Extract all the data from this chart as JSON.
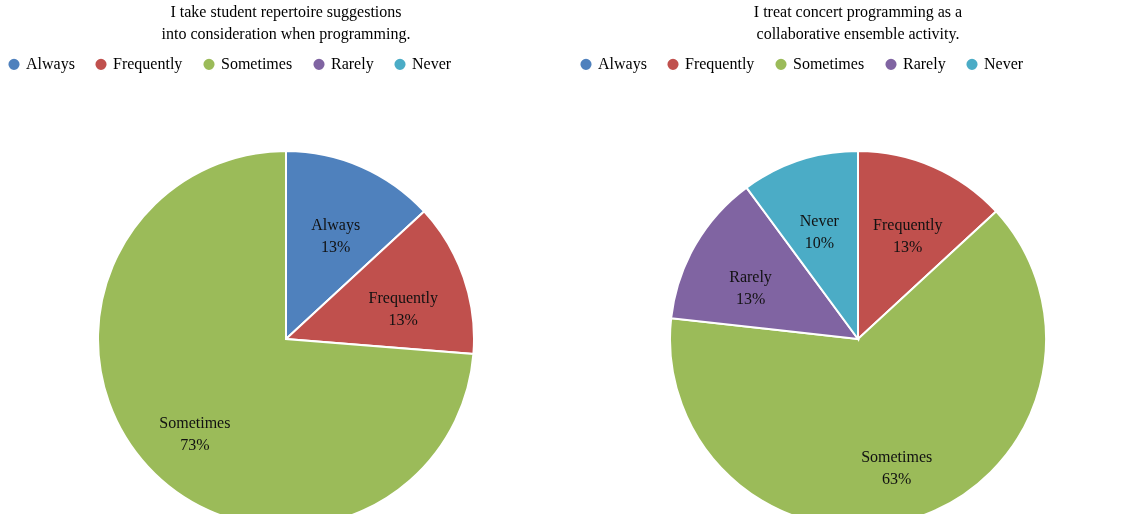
{
  "chart_data": [
    {
      "type": "pie",
      "title": "I take student repertoire suggestions into consideration when programming.",
      "categories": [
        "Always",
        "Frequently",
        "Sometimes",
        "Rarely",
        "Never"
      ],
      "values": [
        13,
        13,
        73,
        0,
        0
      ],
      "colors": [
        "#4f81bd",
        "#c0504d",
        "#9bbb59",
        "#8064a2",
        "#4bacc6"
      ],
      "value_labels": [
        "13%",
        "13%",
        "73%",
        null,
        null
      ],
      "legend": "top"
    },
    {
      "type": "pie",
      "title": "I treat concert programming as a collaborative ensemble activity.",
      "categories": [
        "Always",
        "Frequently",
        "Sometimes",
        "Rarely",
        "Never"
      ],
      "values": [
        0,
        13,
        63,
        13,
        10
      ],
      "colors": [
        "#4f81bd",
        "#c0504d",
        "#9bbb59",
        "#8064a2",
        "#4bacc6"
      ],
      "value_labels": [
        null,
        "13%",
        "63%",
        "13%",
        "10%"
      ],
      "legend": "top"
    }
  ]
}
